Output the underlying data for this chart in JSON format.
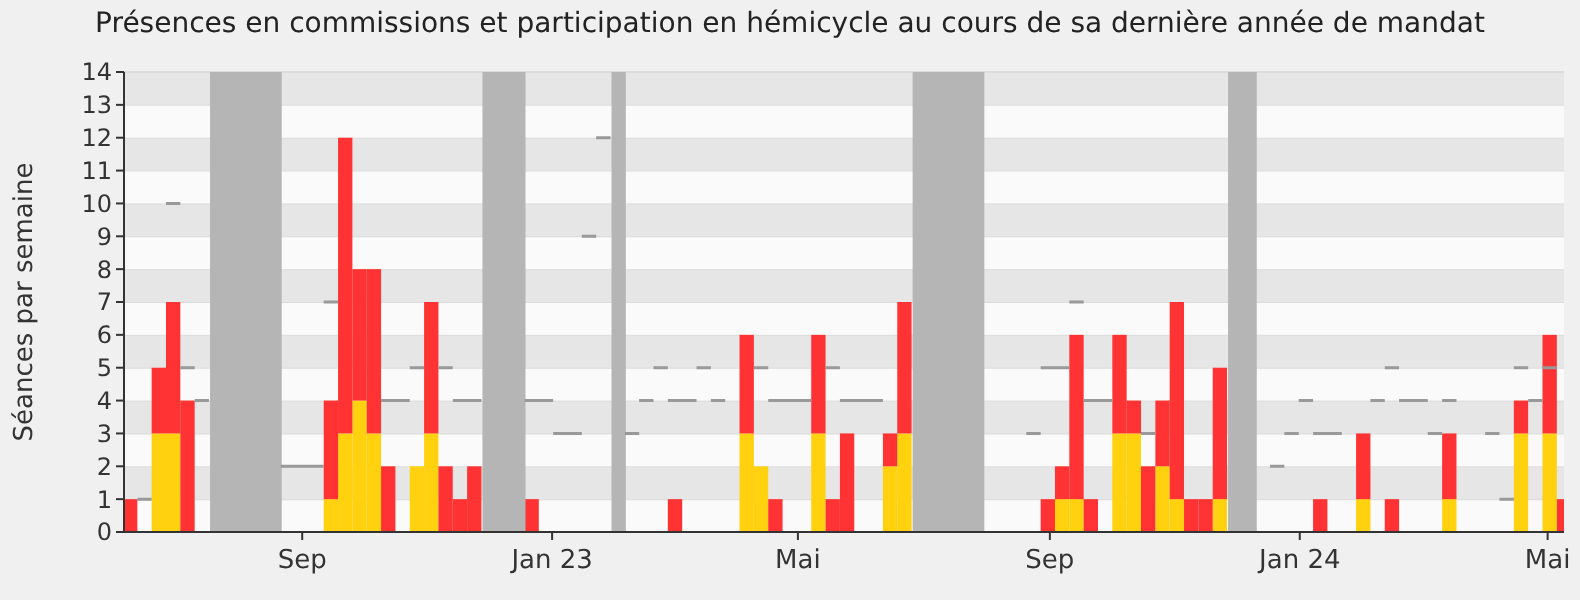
{
  "chart_data": {
    "type": "bar",
    "title": "Présences en commissions et participation en hémicycle au cours de sa dernière année de mandat",
    "ylabel": "Séances par semaine",
    "stacked": true,
    "grid": "y",
    "x": [
      "2022-06-09",
      "2022-06-16",
      "2022-06-23",
      "2022-06-30",
      "2022-07-07",
      "2022-07-14",
      "2022-07-21",
      "2022-07-28",
      "2022-08-04",
      "2022-08-11",
      "2022-08-18",
      "2022-08-25",
      "2022-09-01",
      "2022-09-08",
      "2022-09-15",
      "2022-09-22",
      "2022-09-29",
      "2022-10-06",
      "2022-10-13",
      "2022-10-20",
      "2022-10-27",
      "2022-11-03",
      "2022-11-10",
      "2022-11-17",
      "2022-11-24",
      "2022-12-01",
      "2022-12-08",
      "2022-12-15",
      "2022-12-22",
      "2022-12-29",
      "2023-01-05",
      "2023-01-12",
      "2023-01-19",
      "2023-01-26",
      "2023-02-02",
      "2023-02-09",
      "2023-02-16",
      "2023-02-23",
      "2023-03-02",
      "2023-03-09",
      "2023-03-16",
      "2023-03-23",
      "2023-03-30",
      "2023-04-06",
      "2023-04-13",
      "2023-04-20",
      "2023-04-27",
      "2023-05-04",
      "2023-05-11",
      "2023-05-18",
      "2023-05-25",
      "2023-06-01",
      "2023-06-08",
      "2023-06-15",
      "2023-06-22",
      "2023-06-29",
      "2023-07-06",
      "2023-07-13",
      "2023-07-20",
      "2023-07-27",
      "2023-08-03",
      "2023-08-10",
      "2023-08-17",
      "2023-08-24",
      "2023-08-31",
      "2023-09-07",
      "2023-09-14",
      "2023-09-21",
      "2023-09-28",
      "2023-10-05",
      "2023-10-12",
      "2023-10-19",
      "2023-10-26",
      "2023-11-02",
      "2023-11-09",
      "2023-11-16",
      "2023-11-23",
      "2023-11-30",
      "2023-12-07",
      "2023-12-14",
      "2023-12-21",
      "2023-12-28",
      "2024-01-04",
      "2024-01-11",
      "2024-01-18",
      "2024-01-25",
      "2024-02-01",
      "2024-02-08",
      "2024-02-15",
      "2024-02-22",
      "2024-02-29",
      "2024-03-07",
      "2024-03-14",
      "2024-03-21",
      "2024-03-28",
      "2024-04-04",
      "2024-04-11",
      "2024-04-18",
      "2024-04-25",
      "2024-05-02",
      "2024-05-09"
    ],
    "series": [
      {
        "type": "step",
        "color": "#999999",
        "values": [
          null,
          1,
          null,
          10,
          5,
          4,
          null,
          null,
          null,
          null,
          null,
          2,
          2,
          2,
          7,
          null,
          null,
          null,
          4,
          4,
          5,
          null,
          5,
          4,
          4,
          null,
          null,
          null,
          4,
          4,
          3,
          3,
          9,
          12,
          null,
          3,
          4,
          5,
          4,
          4,
          5,
          4,
          null,
          null,
          5,
          4,
          4,
          4,
          null,
          5,
          4,
          4,
          4,
          null,
          null,
          null,
          null,
          null,
          null,
          null,
          null,
          null,
          null,
          3,
          5,
          5,
          7,
          4,
          4,
          null,
          null,
          3,
          null,
          null,
          null,
          null,
          null,
          null,
          null,
          null,
          2,
          3,
          4,
          3,
          3,
          null,
          null,
          4,
          5,
          4,
          4,
          3,
          4,
          null,
          null,
          3,
          1,
          5,
          4,
          5,
          null
        ]
      },
      {
        "color": "#ffd10f",
        "values": [
          0,
          0,
          3,
          3,
          0,
          0,
          0,
          0,
          0,
          0,
          0,
          0,
          0,
          0,
          1,
          3,
          4,
          3,
          0,
          0,
          2,
          3,
          0,
          0,
          0,
          0,
          0,
          0,
          0,
          0,
          0,
          0,
          0,
          0,
          0,
          0,
          0,
          0,
          0,
          0,
          0,
          0,
          0,
          3,
          2,
          0,
          0,
          0,
          3,
          0,
          0,
          0,
          0,
          2,
          3,
          0,
          0,
          0,
          0,
          0,
          0,
          0,
          0,
          0,
          0,
          1,
          1,
          0,
          0,
          3,
          3,
          0,
          2,
          1,
          0,
          0,
          1,
          0,
          0,
          0,
          0,
          0,
          0,
          0,
          0,
          0,
          1,
          0,
          0,
          0,
          0,
          0,
          1,
          0,
          0,
          0,
          0,
          3,
          0,
          3,
          0
        ]
      },
      {
        "color": "#ff3333",
        "values": [
          1,
          0,
          2,
          4,
          4,
          0,
          0,
          0,
          0,
          0,
          0,
          0,
          0,
          0,
          3,
          9,
          4,
          5,
          2,
          0,
          0,
          4,
          2,
          1,
          2,
          0,
          0,
          0,
          1,
          0,
          0,
          0,
          0,
          0,
          0,
          0,
          0,
          0,
          1,
          0,
          0,
          0,
          0,
          3,
          0,
          1,
          0,
          0,
          3,
          1,
          3,
          0,
          0,
          1,
          4,
          0,
          0,
          0,
          0,
          0,
          0,
          0,
          0,
          0,
          1,
          1,
          5,
          1,
          0,
          3,
          1,
          2,
          2,
          6,
          1,
          1,
          4,
          0,
          0,
          0,
          0,
          0,
          0,
          1,
          0,
          0,
          2,
          0,
          1,
          0,
          0,
          0,
          2,
          0,
          0,
          0,
          0,
          1,
          0,
          3,
          1
        ]
      }
    ],
    "bands": [
      {
        "axis": "x",
        "from": "2022-07-18",
        "to": "2022-08-22",
        "color": "#b5b5b5"
      },
      {
        "axis": "x",
        "from": "2022-11-28",
        "to": "2022-12-19",
        "color": "#b5b5b5"
      },
      {
        "axis": "x",
        "from": "2023-01-30",
        "to": "2023-02-06",
        "color": "#b5b5b5"
      },
      {
        "axis": "x",
        "from": "2023-06-26",
        "to": "2023-07-31",
        "color": "#b5b5b5"
      },
      {
        "axis": "x",
        "from": "2023-11-27",
        "to": "2023-12-11",
        "color": "#b5b5b5"
      }
    ],
    "xlim": [
      "2022-06-06",
      "2024-05-09"
    ],
    "xticks": [
      {
        "value": "2022-09-01",
        "label": "Sep"
      },
      {
        "value": "2023-01-01",
        "label": "Jan 23"
      },
      {
        "value": "2023-05-01",
        "label": "Mai"
      },
      {
        "value": "2023-09-01",
        "label": "Sep"
      },
      {
        "value": "2024-01-01",
        "label": "Jan 24"
      },
      {
        "value": "2024-05-01",
        "label": "Mai"
      }
    ],
    "ylim": [
      0,
      14
    ],
    "yticks": [
      0,
      1,
      2,
      3,
      4,
      5,
      6,
      7,
      8,
      9,
      10,
      11,
      12,
      13,
      14
    ]
  }
}
